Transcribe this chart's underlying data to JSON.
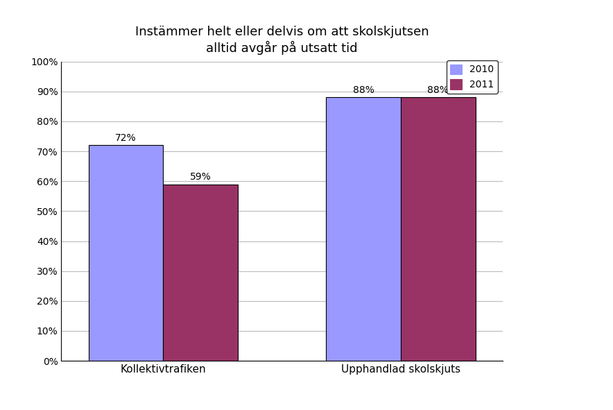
{
  "title": "Instämmer helt eller delvis om att skolskjutsen\nalltid avgår på utsatt tid",
  "categories": [
    "Kollektivtrafiken",
    "Upphandlad skolskjuts"
  ],
  "series": [
    {
      "label": "2010",
      "values": [
        0.72,
        0.88
      ],
      "color": "#9999FF"
    },
    {
      "label": "2011",
      "values": [
        0.59,
        0.88
      ],
      "color": "#993366"
    }
  ],
  "ylim": [
    0,
    1.0
  ],
  "yticks": [
    0.0,
    0.1,
    0.2,
    0.3,
    0.4,
    0.5,
    0.6,
    0.7,
    0.8,
    0.9,
    1.0
  ],
  "ytick_labels": [
    "0%",
    "10%",
    "20%",
    "30%",
    "40%",
    "50%",
    "60%",
    "70%",
    "80%",
    "90%",
    "100%"
  ],
  "bar_width": 0.22,
  "title_fontsize": 13,
  "tick_fontsize": 10,
  "label_fontsize": 11,
  "annotation_fontsize": 10,
  "legend_fontsize": 10,
  "background_color": "#FFFFFF",
  "grid_color": "#BBBBBB",
  "bar_edge_color": "#000000"
}
